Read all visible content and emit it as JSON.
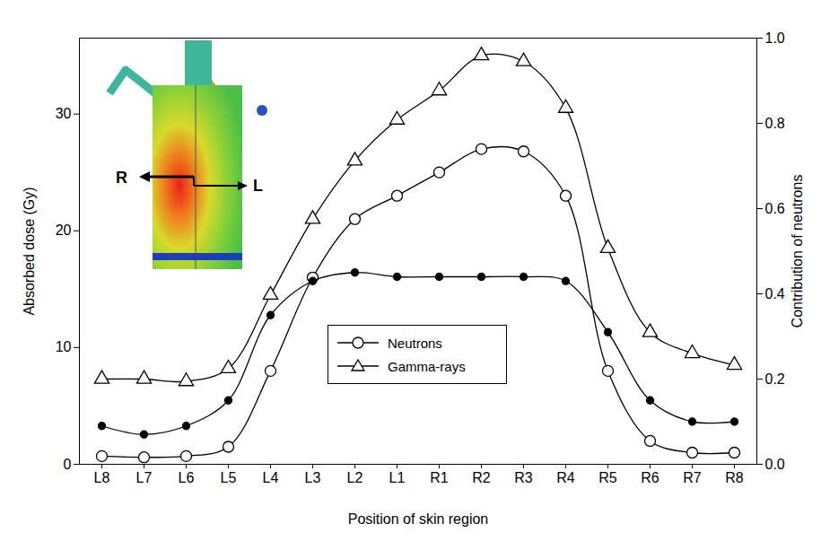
{
  "chart_data": {
    "type": "line",
    "x_label": "Position of skin region",
    "y_label": "Absorbed dose (Gy)",
    "y2_label": "Contribution of neutrons",
    "categories": [
      "L8",
      "L7",
      "L6",
      "L5",
      "L4",
      "L3",
      "L2",
      "L1",
      "R1",
      "R2",
      "R3",
      "R4",
      "R5",
      "R6",
      "R7",
      "R8"
    ],
    "series": [
      {
        "name": "Neutrons",
        "color": "#000000",
        "marker": "open_circle",
        "values": [
          0.7,
          0.6,
          0.7,
          1.5,
          8,
          16,
          21,
          23,
          25,
          27,
          26.8,
          23,
          8,
          2,
          1,
          1
        ]
      },
      {
        "name": "Gamma-rays",
        "color": "#000000",
        "marker": "open_triangle",
        "values": [
          7.3,
          7.3,
          7.1,
          8.2,
          14.5,
          21,
          26,
          29.5,
          32,
          35,
          34.5,
          30.5,
          18.5,
          11.3,
          9.5,
          8.5
        ]
      },
      {
        "color": "#000000",
        "marker": "filled_circle",
        "axis": "y2",
        "values": [
          0.09,
          0.07,
          0.09,
          0.15,
          0.35,
          0.43,
          0.45,
          0.44,
          0.44,
          0.44,
          0.44,
          0.43,
          0.31,
          0.15,
          0.1,
          0.1
        ]
      }
    ],
    "ylim": [
      0,
      36.5
    ],
    "yticks": [
      0,
      10,
      20,
      30
    ],
    "y2lim": [
      0,
      1
    ],
    "y2ticks": [
      {
        "value": 0,
        "label": "0.0"
      },
      0.2,
      0.4,
      0.6,
      0.8,
      {
        "value": 1,
        "label": "1.0"
      }
    ],
    "legend": "bottom",
    "annotations": [
      "R",
      "L"
    ],
    "grid": false
  }
}
